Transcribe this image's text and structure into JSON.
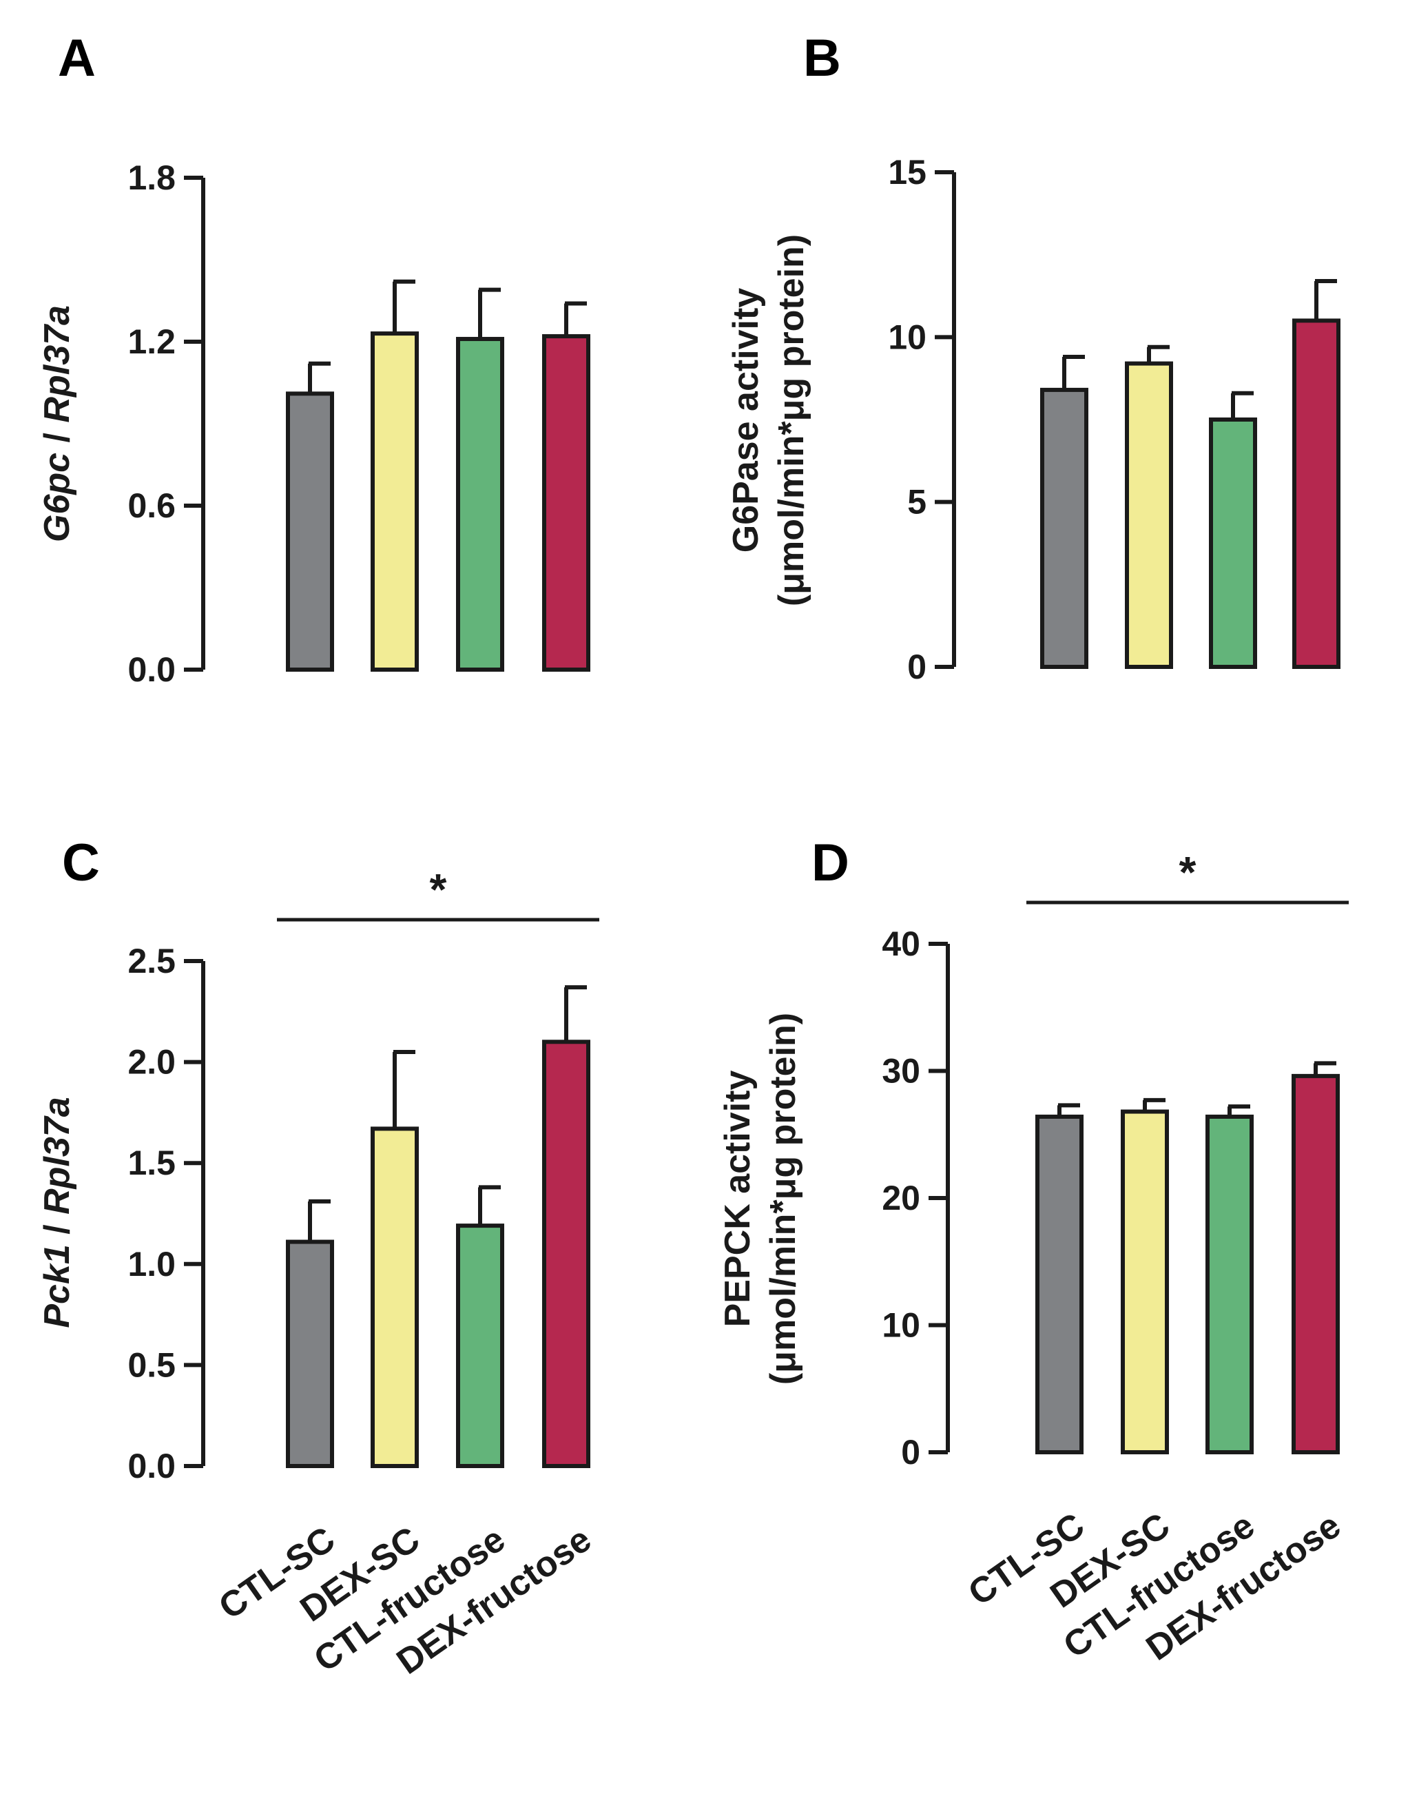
{
  "colors": {
    "CTL-SC": "#808285",
    "DEX-SC": "#f2ec95",
    "CTL-fructose": "#63b47a",
    "DEX-fructose": "#b5284f"
  },
  "chart_data": [
    {
      "panel": "A",
      "type": "bar",
      "categories": [
        "CTL-SC",
        "DEX-SC",
        "CTL-fructose",
        "DEX-fructose"
      ],
      "values": [
        1.01,
        1.23,
        1.21,
        1.22
      ],
      "errors": [
        0.11,
        0.19,
        0.18,
        0.12
      ],
      "ylabel_parts": [
        {
          "text": "G6pc",
          "italic": true
        },
        {
          "text": " / ",
          "italic": false
        },
        {
          "text": "Rpl37a",
          "italic": true
        }
      ],
      "ylim": [
        0,
        1.8
      ],
      "yticks": [
        0.0,
        0.6,
        1.2,
        1.8
      ],
      "ytick_labels": [
        "0.0",
        "0.6",
        "1.2",
        "1.8"
      ],
      "show_category_labels": false,
      "significance": null
    },
    {
      "panel": "B",
      "type": "bar",
      "categories": [
        "CTL-SC",
        "DEX-SC",
        "CTL-fructose",
        "DEX-fructose"
      ],
      "values": [
        8.4,
        9.2,
        7.5,
        10.5
      ],
      "errors": [
        1.0,
        0.5,
        0.8,
        1.2
      ],
      "ylabel_lines": [
        "G6Pase activity",
        "(μmol/min*μg protein)"
      ],
      "ylim": [
        0,
        15
      ],
      "yticks": [
        0,
        5,
        10,
        15
      ],
      "ytick_labels": [
        "0",
        "5",
        "10",
        "15"
      ],
      "show_category_labels": false,
      "significance": null
    },
    {
      "panel": "C",
      "type": "bar",
      "categories": [
        "CTL-SC",
        "DEX-SC",
        "CTL-fructose",
        "DEX-fructose"
      ],
      "values": [
        1.11,
        1.67,
        1.19,
        2.1
      ],
      "errors": [
        0.2,
        0.38,
        0.19,
        0.27
      ],
      "ylabel_parts": [
        {
          "text": "Pck1",
          "italic": true
        },
        {
          "text": " / ",
          "italic": false
        },
        {
          "text": "Rpl37a",
          "italic": true
        }
      ],
      "ylim": [
        0,
        2.5
      ],
      "yticks": [
        0.0,
        0.5,
        1.0,
        1.5,
        2.0,
        2.5
      ],
      "ytick_labels": [
        "0.0",
        "0.5",
        "1.0",
        "1.5",
        "2.0",
        "2.5"
      ],
      "show_category_labels": true,
      "significance": {
        "from": 0,
        "to": 3,
        "label": "*"
      }
    },
    {
      "panel": "D",
      "type": "bar",
      "categories": [
        "CTL-SC",
        "DEX-SC",
        "CTL-fructose",
        "DEX-fructose"
      ],
      "values": [
        26.4,
        26.8,
        26.4,
        29.6
      ],
      "errors": [
        0.9,
        0.9,
        0.8,
        1.0
      ],
      "ylabel_lines": [
        "PEPCK activity",
        "(μmol/min*μg protein)"
      ],
      "ylim": [
        0,
        40
      ],
      "yticks": [
        0,
        10,
        20,
        30,
        40
      ],
      "ytick_labels": [
        "0",
        "10",
        "20",
        "30",
        "40"
      ],
      "show_category_labels": true,
      "significance": {
        "from": 0,
        "to": 3,
        "label": "*"
      }
    }
  ]
}
